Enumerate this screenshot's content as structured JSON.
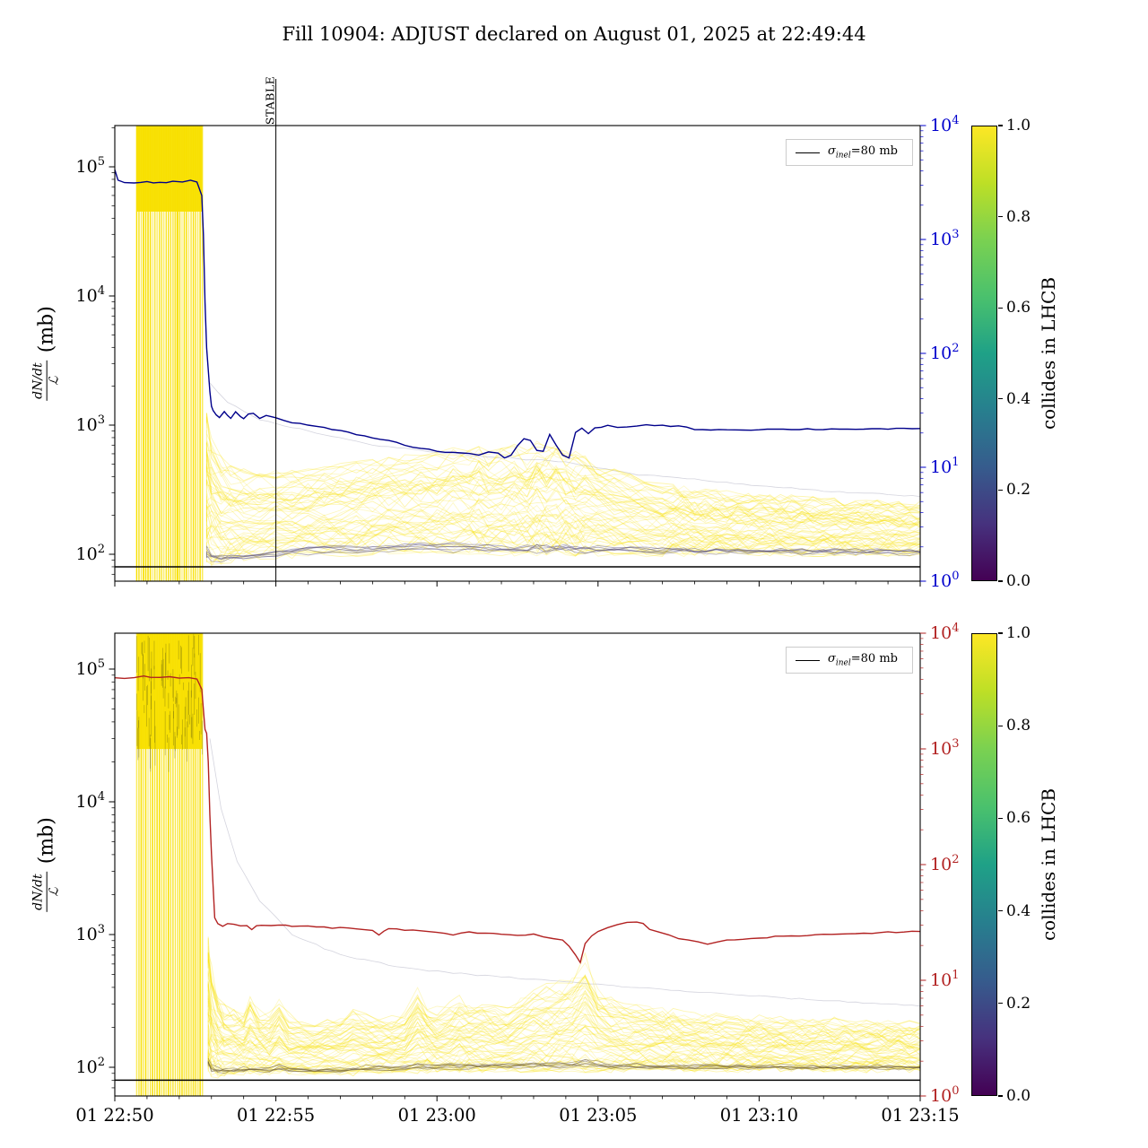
{
  "title": "Fill 10904: ADJUST declared on August 01, 2025 at 22:49:44",
  "ylabel": {
    "num": "dN/dt",
    "den": "ℒ",
    "unit": "(mb)"
  },
  "legend": {
    "sigma": "σ",
    "sub": "inel",
    "rest": "=80 mb"
  },
  "stable_label": "STABLE",
  "colorbar": {
    "label": "collides in LHCB",
    "ticks": [
      "0.0",
      "0.2",
      "0.4",
      "0.6",
      "0.8",
      "1.0"
    ],
    "viridis": [
      "#440154",
      "#46327e",
      "#365c8d",
      "#277f8e",
      "#1fa187",
      "#4ac16d",
      "#7ad151",
      "#bddf26",
      "#fde725"
    ]
  },
  "colors": {
    "bundle": "#f8e000",
    "sigma_line": "#000000",
    "dark_trace_top": "#5a4f7d",
    "dark_trace_bottom": "#6b5a33",
    "ghost": "#c9c9d6",
    "top_line": "#00008b",
    "top_right_axis": "#0000cd",
    "bottom_line": "#b22222",
    "bottom_right_axis": "#b22222"
  },
  "x_tick_labels": [
    "01 22:50",
    "01 22:55",
    "01 23:00",
    "01 23:05",
    "01 23:10",
    "01 23:15"
  ],
  "x_tick_minutes": [
    0,
    5,
    10,
    15,
    20,
    25
  ],
  "left_y_exponents": [
    2,
    3,
    4,
    5
  ],
  "right_y_exponents": [
    0,
    1,
    2,
    3,
    4
  ],
  "chart_data": [
    {
      "type": "line",
      "name": "top-subplot dN/dt over luminosity vs time",
      "ylabel": "dN/dt / ℒ (mb)",
      "right_axis": "log 10^0 to 10^4, blue",
      "x_unit": "minutes after 01 Aug 22:50",
      "x_range_minutes": [
        0,
        25
      ],
      "ylim": [
        62,
        210000
      ],
      "right_ylim_exponents": [
        0,
        4
      ],
      "grid": false,
      "legend_label": "σ_inel=80 mb",
      "sigma_line_mb": 80,
      "stable_line_minute": 5,
      "line_color": "#00008b",
      "right_axis_color": "#0000cd",
      "n_traces": 60,
      "main_line": {
        "x": [
          0,
          0.1,
          0.3,
          0.6,
          1.0,
          1.4,
          1.8,
          2.1,
          2.35,
          2.55,
          2.7,
          2.75,
          2.8,
          2.85,
          2.95,
          3.0,
          3.05,
          3.15,
          3.25,
          3.4,
          3.5,
          3.6,
          3.75,
          3.9,
          4.0,
          4.15,
          4.3,
          4.5,
          4.7,
          5.0,
          5.5,
          6.0,
          6.5,
          7.0,
          7.5,
          8.0,
          8.5,
          9.0,
          9.5,
          10.0,
          10.5,
          11.0,
          11.3,
          11.6,
          11.9,
          12.1,
          12.3,
          12.5,
          12.7,
          12.9,
          13.1,
          13.3,
          13.5,
          13.7,
          13.9,
          14.1,
          14.3,
          14.5,
          14.7,
          14.9,
          15.1,
          15.3,
          15.6,
          15.9,
          16.2,
          16.5,
          17.0,
          17.5,
          18.0,
          19.0,
          20.0,
          21.0,
          22.0,
          23.0,
          24.0,
          25.0
        ],
        "y": [
          95000,
          78000,
          76000,
          75000,
          76500,
          75500,
          76500,
          77000,
          78000,
          76000,
          60000,
          30000,
          9000,
          4000,
          1800,
          1400,
          1300,
          1200,
          1150,
          1280,
          1180,
          1120,
          1260,
          1180,
          1120,
          1230,
          1250,
          1120,
          1180,
          1150,
          1050,
          1000,
          950,
          900,
          850,
          800,
          760,
          700,
          660,
          630,
          615,
          600,
          590,
          620,
          600,
          560,
          580,
          700,
          790,
          760,
          640,
          620,
          840,
          700,
          580,
          560,
          880,
          940,
          850,
          940,
          970,
          1000,
          950,
          975,
          990,
          1000,
          995,
          980,
          930,
          920,
          925,
          930,
          930,
          935,
          935,
          930
        ]
      },
      "band": {
        "x": [
          2.85,
          3.0,
          3.3,
          3.6,
          4.0,
          4.5,
          5.0,
          5.5,
          6.0,
          6.5,
          7.0,
          7.5,
          8.0,
          8.5,
          9.0,
          9.5,
          10.0,
          10.5,
          11.0,
          11.3,
          11.6,
          12.0,
          12.4,
          12.8,
          13.1,
          13.4,
          13.7,
          14.0,
          14.3,
          14.6,
          15.0,
          15.5,
          16.0,
          16.5,
          17.0,
          18.0,
          19.0,
          20.0,
          21.0,
          22.0,
          23.0,
          24.0,
          25.0
        ],
        "min": [
          90,
          85,
          85,
          86,
          88,
          92,
          95,
          97,
          100,
          100,
          100,
          100,
          102,
          103,
          104,
          104,
          105,
          105,
          103,
          102,
          102,
          101,
          100,
          100,
          100,
          100,
          100,
          100,
          100,
          100,
          100,
          100,
          100,
          100,
          100,
          100,
          100,
          100,
          100,
          100,
          100,
          100,
          100
        ],
        "max": [
          1200,
          800,
          560,
          480,
          440,
          420,
          430,
          440,
          450,
          470,
          500,
          520,
          540,
          560,
          580,
          600,
          610,
          650,
          620,
          680,
          600,
          640,
          700,
          620,
          750,
          680,
          720,
          640,
          600,
          580,
          500,
          450,
          400,
          370,
          350,
          320,
          300,
          290,
          280,
          270,
          260,
          255,
          250
        ]
      },
      "ghost_line": {
        "x": [
          2.9,
          3.5,
          4.5,
          6,
          8,
          10,
          12,
          14,
          16,
          18,
          20,
          22,
          25
        ],
        "y": [
          2200,
          1500,
          1100,
          900,
          700,
          620,
          560,
          520,
          420,
          380,
          340,
          310,
          280
        ]
      },
      "stripes": {
        "t_start": 0.68,
        "t_end": 2.72,
        "count": 30,
        "block_min_value": 45000,
        "speckled": false
      }
    },
    {
      "type": "line",
      "name": "bottom-subplot dN/dt over luminosity vs time",
      "ylabel": "dN/dt / ℒ (mb)",
      "right_axis": "log 10^0 to 10^4, red",
      "x_unit": "minutes after 01 Aug 22:50",
      "x_range_minutes": [
        0,
        25
      ],
      "ylim": [
        61,
        190000
      ],
      "right_ylim_exponents": [
        0,
        4
      ],
      "grid": false,
      "legend_label": "σ_inel=80 mb",
      "sigma_line_mb": 80,
      "stable_line_minute": null,
      "line_color": "#b22222",
      "right_axis_color": "#b22222",
      "n_traces": 60,
      "main_line": {
        "x": [
          0,
          0.3,
          0.6,
          0.9,
          1.1,
          1.4,
          1.7,
          2.0,
          2.3,
          2.55,
          2.7,
          2.75,
          2.8,
          2.85,
          2.9,
          2.95,
          3.0,
          3.1,
          3.2,
          3.35,
          3.5,
          3.7,
          3.9,
          4.1,
          4.25,
          4.4,
          4.55,
          4.85,
          5.1,
          5.5,
          6.0,
          6.5,
          7.0,
          7.5,
          8.0,
          8.2,
          8.35,
          8.5,
          9.0,
          9.5,
          10.0,
          10.5,
          11.0,
          11.5,
          12.0,
          12.5,
          13.0,
          13.3,
          13.6,
          13.9,
          14.1,
          14.3,
          14.45,
          14.6,
          14.8,
          15.0,
          15.3,
          15.6,
          15.9,
          16.2,
          16.4,
          16.6,
          16.9,
          17.2,
          17.5,
          17.8,
          18.1,
          18.4,
          18.7,
          19.0,
          19.5,
          20.0,
          21.0,
          22.0,
          23.0,
          24.0,
          25.0
        ],
        "y": [
          86000,
          85500,
          86500,
          88000,
          86500,
          86000,
          86500,
          86000,
          85500,
          84000,
          70000,
          50000,
          35000,
          33000,
          20000,
          8000,
          4000,
          1350,
          1200,
          1150,
          1200,
          1180,
          1170,
          1180,
          1080,
          1150,
          1170,
          1160,
          1180,
          1160,
          1150,
          1130,
          1120,
          1100,
          1080,
          1000,
          1050,
          1100,
          1080,
          1060,
          1050,
          1000,
          1050,
          1020,
          1000,
          980,
          1000,
          950,
          940,
          900,
          820,
          700,
          620,
          850,
          980,
          1050,
          1120,
          1180,
          1230,
          1250,
          1200,
          1100,
          1050,
          1000,
          930,
          900,
          880,
          850,
          880,
          910,
          930,
          950,
          970,
          1000,
          1020,
          1040,
          1050
        ]
      },
      "band": {
        "x": [
          2.9,
          3.0,
          3.2,
          3.4,
          3.7,
          4.0,
          4.2,
          4.5,
          4.8,
          5.1,
          5.4,
          5.8,
          6.2,
          6.6,
          7.0,
          7.4,
          7.8,
          8.2,
          8.6,
          9.0,
          9.4,
          9.7,
          10.0,
          10.4,
          10.7,
          11.0,
          11.4,
          11.8,
          12.2,
          12.6,
          13.0,
          13.4,
          13.8,
          14.2,
          14.6,
          15.0,
          15.4,
          15.8,
          16.2,
          17.0,
          18.0,
          19.0,
          20.0,
          21.0,
          22.0,
          23.0,
          24.0,
          25.0
        ],
        "min": [
          95,
          88,
          86,
          88,
          88,
          90,
          90,
          90,
          90,
          92,
          90,
          90,
          90,
          90,
          90,
          90,
          92,
          92,
          92,
          93,
          93,
          94,
          94,
          94,
          94,
          95,
          95,
          95,
          95,
          95,
          95,
          95,
          95,
          95,
          95,
          95,
          95,
          95,
          95,
          95,
          95,
          95,
          95,
          95,
          95,
          95,
          95,
          95
        ],
        "max": [
          1000,
          600,
          380,
          300,
          280,
          270,
          350,
          260,
          250,
          320,
          260,
          230,
          220,
          230,
          240,
          280,
          260,
          250,
          240,
          260,
          400,
          300,
          280,
          300,
          350,
          300,
          320,
          300,
          290,
          350,
          400,
          420,
          450,
          480,
          700,
          400,
          350,
          320,
          300,
          280,
          260,
          250,
          240,
          235,
          230,
          230,
          225,
          225
        ]
      },
      "ghost_line": {
        "x": [
          2.95,
          3.3,
          3.8,
          4.5,
          5.5,
          7,
          9,
          11,
          13,
          15,
          18,
          21,
          25
        ],
        "y": [
          30000,
          9000,
          3500,
          1800,
          1000,
          700,
          560,
          500,
          460,
          420,
          370,
          330,
          290
        ]
      },
      "stripes": {
        "t_start": 0.68,
        "t_end": 2.72,
        "count": 30,
        "block_min_value": 25000,
        "speckled": true
      }
    }
  ]
}
